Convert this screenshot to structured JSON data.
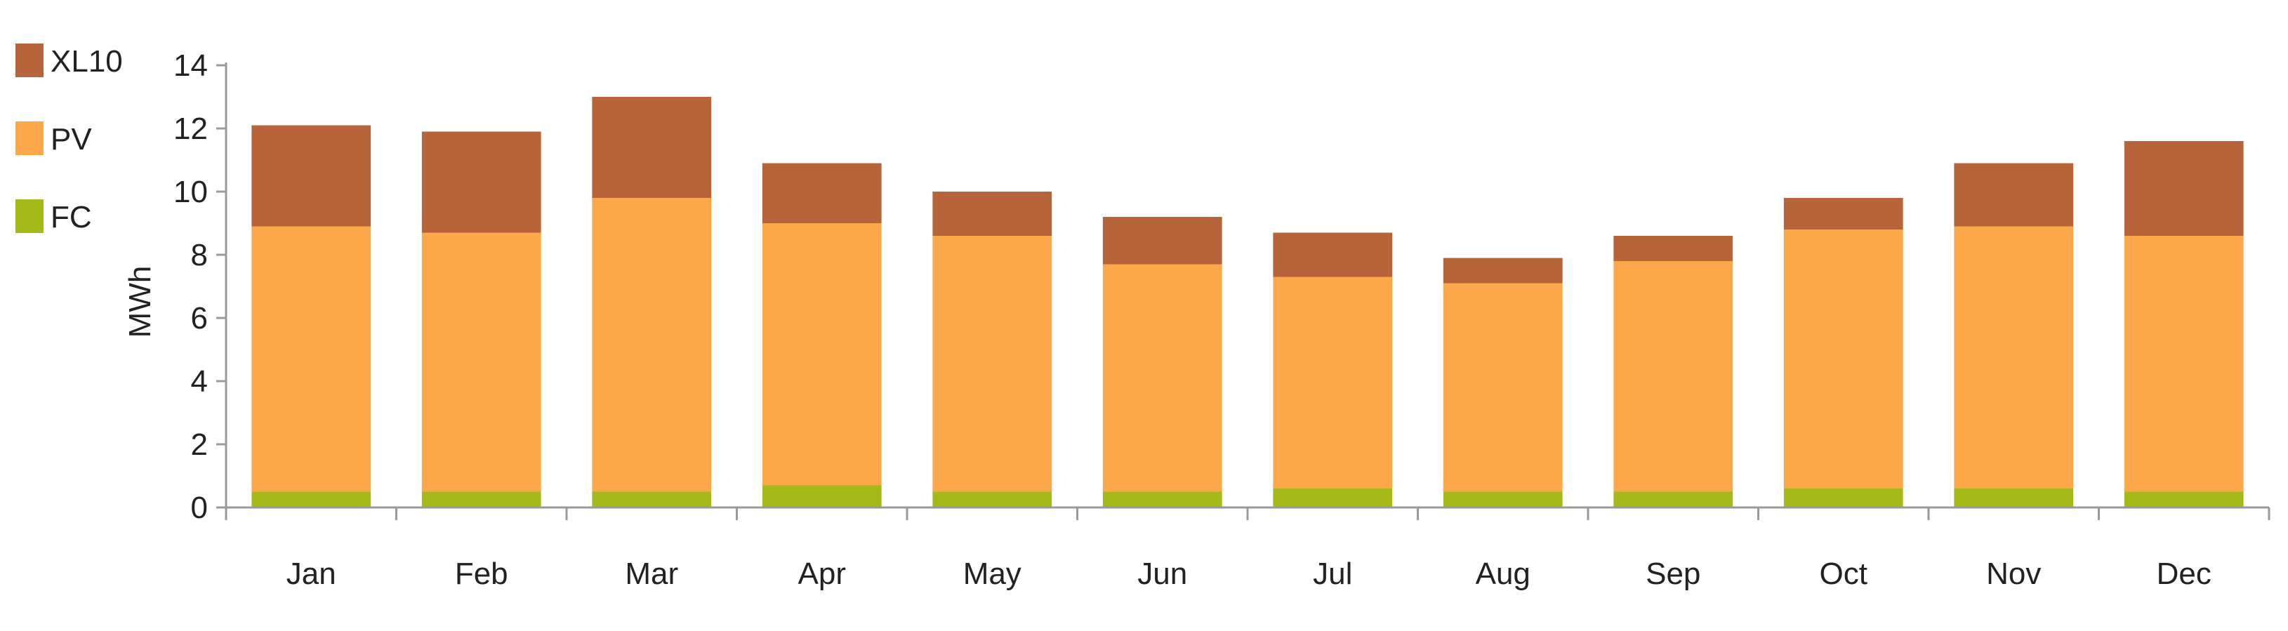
{
  "chart_data": {
    "type": "bar",
    "stacked": true,
    "categories": [
      "Jan",
      "Feb",
      "Mar",
      "Apr",
      "May",
      "Jun",
      "Jul",
      "Aug",
      "Sep",
      "Oct",
      "Nov",
      "Dec"
    ],
    "series": [
      {
        "name": "FC",
        "color": "#a5b918",
        "values": [
          0.5,
          0.5,
          0.5,
          0.7,
          0.5,
          0.5,
          0.6,
          0.5,
          0.5,
          0.6,
          0.6,
          0.5
        ]
      },
      {
        "name": "PV",
        "color": "#fca84a",
        "values": [
          8.4,
          8.2,
          9.3,
          8.3,
          8.1,
          7.2,
          6.7,
          6.6,
          7.3,
          8.2,
          8.3,
          8.1
        ]
      },
      {
        "name": "XL10",
        "color": "#b8643a",
        "values": [
          3.2,
          3.2,
          3.2,
          1.9,
          1.4,
          1.5,
          1.4,
          0.8,
          0.8,
          1.0,
          2.0,
          3.0
        ]
      }
    ],
    "legend_order": [
      "XL10",
      "PV",
      "FC"
    ],
    "legend_position": "top-left",
    "title": "",
    "xlabel": "",
    "ylabel": "MWh",
    "ylim": [
      0,
      14
    ],
    "yticks": [
      0,
      2,
      4,
      6,
      8,
      10,
      12,
      14
    ],
    "grid": false
  }
}
